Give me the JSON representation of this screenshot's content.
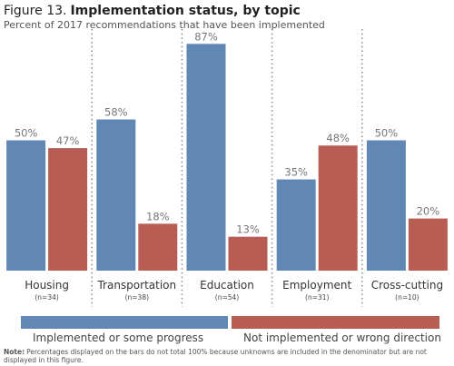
{
  "figure": {
    "prefix": "Figure 13.",
    "title": "Implementation status, by topic",
    "subtitle": "Percent of 2017 recommendations that have been implemented"
  },
  "chart_data": {
    "type": "bar",
    "categories": [
      "Housing",
      "Transportation",
      "Education",
      "Employment",
      "Cross-cutting"
    ],
    "category_counts": [
      "(n=34)",
      "(n=38)",
      "(n=54)",
      "(n=31)",
      "(n=10)"
    ],
    "series": [
      {
        "name": "Implemented or some progress",
        "color": "#6187b5",
        "values": [
          50,
          58,
          87,
          35,
          50
        ],
        "labels": [
          "50%",
          "58%",
          "87%",
          "35%",
          "50%"
        ]
      },
      {
        "name": "Not implemented or wrong direction",
        "color": "#b75d53",
        "values": [
          47,
          18,
          13,
          48,
          20
        ],
        "labels": [
          "47%",
          "18%",
          "13%",
          "48%",
          "20%"
        ]
      }
    ],
    "ylim": [
      0,
      100
    ],
    "grid": false,
    "legend_placement": "bottom",
    "category_separators": "dotted"
  },
  "note": {
    "label": "Note:",
    "line1": "Percentages displayed on the bars do not total 100% because unknowns are included in the denominator but are not",
    "line2": "displayed in this figure."
  },
  "colors": {
    "series_1": "#6187b5",
    "series_2": "#b75d53",
    "label_text": "#777777",
    "separator": "#8f8f8f"
  }
}
